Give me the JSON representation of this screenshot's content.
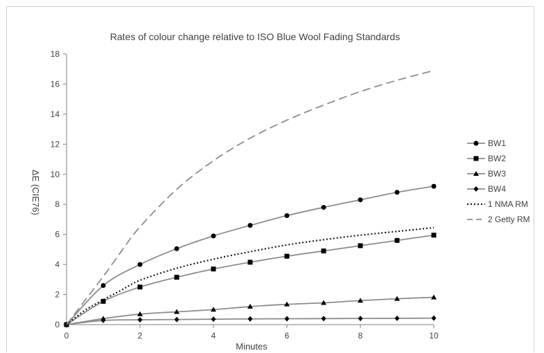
{
  "chart_data": {
    "type": "line",
    "title": "Rates of colour change relative to ISO Blue Wool Fading Standards",
    "xlabel": "Minutes",
    "ylabel": "ΔE (CIE76)",
    "xlim": [
      0,
      10
    ],
    "ylim": [
      0,
      18
    ],
    "xticks": [
      0,
      2,
      4,
      6,
      8,
      10
    ],
    "yticks": [
      0,
      2,
      4,
      6,
      8,
      10,
      12,
      14,
      16,
      18
    ],
    "grid": false,
    "legend_position": "right",
    "series": [
      {
        "name": "BW1",
        "marker": "circle",
        "dash": "solid",
        "color": "#8c8c8c",
        "x": [
          0,
          1,
          2,
          3,
          4,
          5,
          6,
          7,
          8,
          9,
          10
        ],
        "y": [
          0,
          2.6,
          4.0,
          5.05,
          5.9,
          6.6,
          7.25,
          7.8,
          8.3,
          8.8,
          9.2
        ]
      },
      {
        "name": "BW2",
        "marker": "square",
        "dash": "solid",
        "color": "#8c8c8c",
        "x": [
          0,
          1,
          2,
          3,
          4,
          5,
          6,
          7,
          8,
          9,
          10
        ],
        "y": [
          0,
          1.55,
          2.5,
          3.15,
          3.7,
          4.15,
          4.55,
          4.9,
          5.25,
          5.6,
          5.95
        ]
      },
      {
        "name": "BW3",
        "marker": "triangle",
        "dash": "solid",
        "color": "#8c8c8c",
        "x": [
          0,
          1,
          2,
          3,
          4,
          5,
          6,
          7,
          8,
          9,
          10
        ],
        "y": [
          0,
          0.4,
          0.7,
          0.85,
          1.0,
          1.2,
          1.35,
          1.45,
          1.6,
          1.72,
          1.82
        ]
      },
      {
        "name": "BW4",
        "marker": "diamond",
        "dash": "solid",
        "color": "#8c8c8c",
        "x": [
          0,
          1,
          2,
          3,
          4,
          5,
          6,
          7,
          8,
          9,
          10
        ],
        "y": [
          0,
          0.28,
          0.32,
          0.34,
          0.36,
          0.38,
          0.39,
          0.4,
          0.41,
          0.42,
          0.43
        ]
      },
      {
        "name": "1 NMA RM",
        "marker": "none",
        "dash": "dotted",
        "color": "#1a1a1a",
        "x": [
          0,
          0.5,
          1,
          1.5,
          2,
          3,
          4,
          5,
          6,
          7,
          8,
          9,
          10
        ],
        "y": [
          0,
          0.95,
          1.65,
          2.3,
          2.95,
          3.75,
          4.35,
          4.85,
          5.3,
          5.65,
          5.95,
          6.2,
          6.45
        ]
      },
      {
        "name": "2 Getty RM",
        "marker": "none",
        "dash": "dashed",
        "color": "#8c8c8c",
        "x": [
          0,
          0.5,
          1,
          1.5,
          2,
          3,
          4,
          5,
          6,
          7,
          8,
          9,
          10
        ],
        "y": [
          0,
          1.6,
          3.2,
          4.9,
          6.5,
          9.0,
          10.9,
          12.4,
          13.6,
          14.6,
          15.5,
          16.25,
          16.9
        ]
      }
    ]
  }
}
